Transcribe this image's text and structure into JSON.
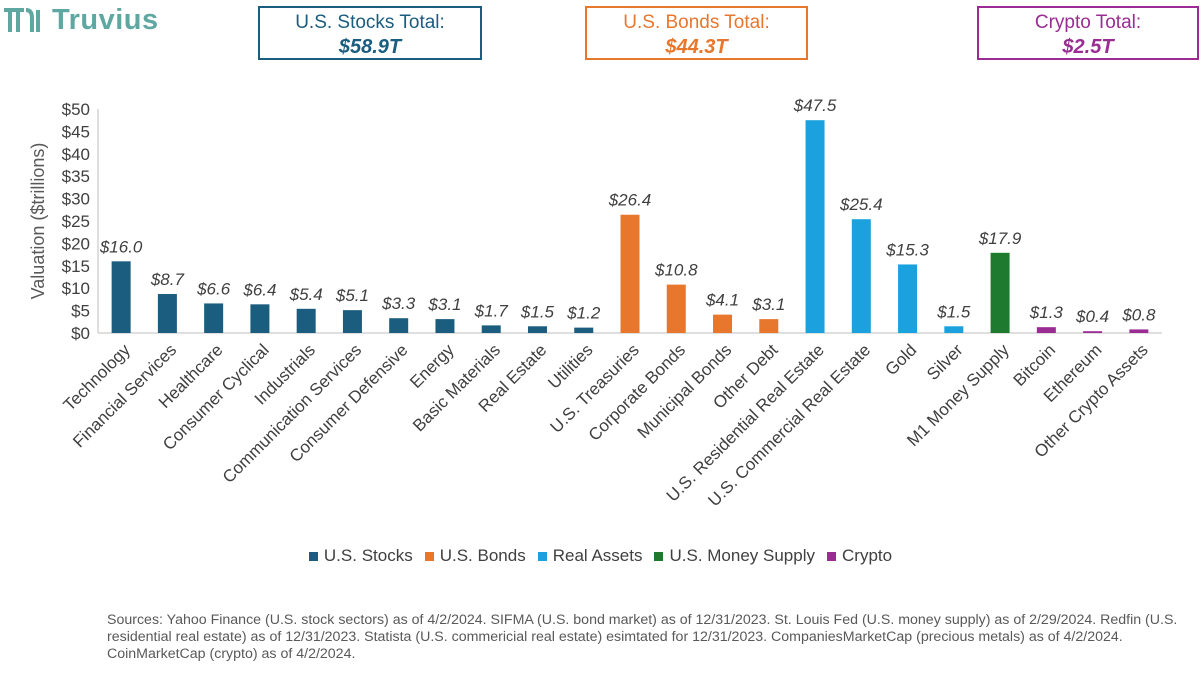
{
  "brand": {
    "name": "Truvius",
    "logo_icon": "truvius-logo-icon",
    "color": "#5fa8a2"
  },
  "totals": {
    "stocks": {
      "label": "U.S. Stocks Total:",
      "value": "$58.9T",
      "color": "#1b5d7f"
    },
    "bonds": {
      "label": "U.S. Bonds Total:",
      "value": "$44.3T",
      "color": "#e8772e"
    },
    "crypto": {
      "label": "Crypto Total:",
      "value": "$2.5T",
      "color": "#9a2c94"
    }
  },
  "legend": [
    {
      "label": "U.S. Stocks",
      "color": "#1b5d7f"
    },
    {
      "label": "U.S. Bonds",
      "color": "#e8772e"
    },
    {
      "label": "Real Assets",
      "color": "#1ba1de"
    },
    {
      "label": "U.S. Money Supply",
      "color": "#1d7a2e"
    },
    {
      "label": "Crypto",
      "color": "#9a2c94"
    }
  ],
  "sources": "Sources: Yahoo Finance (U.S. stock sectors) as of 4/2/2024. SIFMA (U.S. bond market) as of 12/31/2023. St. Louis Fed (U.S. money supply) as of 2/29/2024. Redfin (U.S. residential real estate) as of 12/31/2023. Statista (U.S. commericial real estate) esimtated for 12/31/2023. CompaniesMarketCap (precious metals) as of 4/2/2024. CoinMarketCap (crypto) as of 4/2/2024.",
  "chart_data": {
    "type": "bar",
    "title": "",
    "xlabel": "",
    "ylabel": "Valuation ($trillions)",
    "ylim": [
      0,
      50
    ],
    "yticks": [
      0,
      5,
      10,
      15,
      20,
      25,
      30,
      35,
      40,
      45,
      50
    ],
    "ytick_labels": [
      "$0",
      "$5",
      "$10",
      "$15",
      "$20",
      "$25",
      "$30",
      "$35",
      "$40",
      "$45",
      "$50"
    ],
    "grid": false,
    "legend_position": "bottom",
    "categories": [
      "Technology",
      "Financial Services",
      "Healthcare",
      "Consumer Cyclical",
      "Industrials",
      "Communication Services",
      "Consumer Defensive",
      "Energy",
      "Basic Materials",
      "Real Estate",
      "Utilities",
      "U.S. Treasuries",
      "Corporate Bonds",
      "Municipal Bonds",
      "Other Debt",
      "U.S. Residential Real Estate",
      "U.S. Commercial Real Estate",
      "Gold",
      "Silver",
      "M1 Money Supply",
      "Bitcoin",
      "Ethereum",
      "Other Crypto Assets"
    ],
    "values": [
      16.0,
      8.7,
      6.6,
      6.4,
      5.4,
      5.1,
      3.3,
      3.1,
      1.7,
      1.5,
      1.2,
      26.4,
      10.8,
      4.1,
      3.1,
      47.5,
      25.4,
      15.3,
      1.5,
      17.9,
      1.3,
      0.4,
      0.8
    ],
    "data_labels": [
      "$16.0",
      "$8.7",
      "$6.6",
      "$6.4",
      "$5.4",
      "$5.1",
      "$3.3",
      "$3.1",
      "$1.7",
      "$1.5",
      "$1.2",
      "$26.4",
      "$10.8",
      "$4.1",
      "$3.1",
      "$47.5",
      "$25.4",
      "$15.3",
      "$1.5",
      "$17.9",
      "$1.3",
      "$0.4",
      "$0.8"
    ],
    "groups": [
      "U.S. Stocks",
      "U.S. Stocks",
      "U.S. Stocks",
      "U.S. Stocks",
      "U.S. Stocks",
      "U.S. Stocks",
      "U.S. Stocks",
      "U.S. Stocks",
      "U.S. Stocks",
      "U.S. Stocks",
      "U.S. Stocks",
      "U.S. Bonds",
      "U.S. Bonds",
      "U.S. Bonds",
      "U.S. Bonds",
      "Real Assets",
      "Real Assets",
      "Real Assets",
      "Real Assets",
      "U.S. Money Supply",
      "Crypto",
      "Crypto",
      "Crypto"
    ]
  }
}
